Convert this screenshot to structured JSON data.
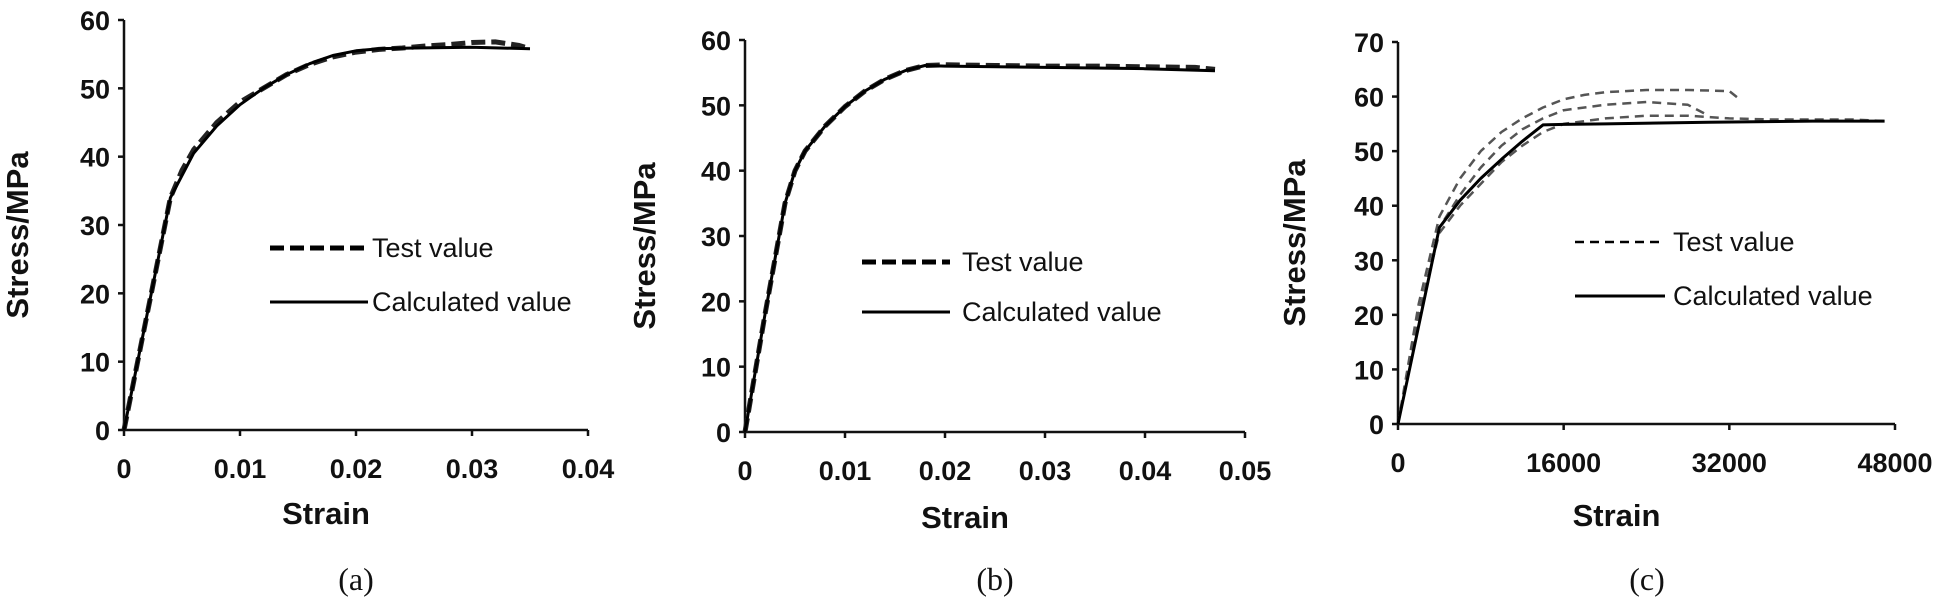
{
  "chart_data": [
    {
      "type": "line",
      "caption": "(a)",
      "xlabel": "Strain",
      "ylabel": "Stress/MPa",
      "xlim": [
        0,
        0.04
      ],
      "ylim": [
        0,
        60
      ],
      "xticks": [
        0,
        0.01,
        0.02,
        0.03,
        0.04
      ],
      "xtick_labels": [
        "0",
        "0.01",
        "0.02",
        "0.03",
        "0.04"
      ],
      "yticks": [
        0,
        10,
        20,
        30,
        40,
        50,
        60
      ],
      "ytick_labels": [
        "0",
        "10",
        "20",
        "30",
        "40",
        "50",
        "60"
      ],
      "legend_position": "center-right",
      "series": [
        {
          "name": "Test value",
          "style": "dashed-thick",
          "x": [
            0,
            0.002,
            0.004,
            0.005,
            0.006,
            0.008,
            0.01,
            0.012,
            0.014,
            0.016,
            0.018,
            0.02,
            0.022,
            0.024,
            0.026,
            0.028,
            0.03,
            0.032,
            0.034,
            0.035
          ],
          "y": [
            0,
            17,
            34,
            38,
            41,
            45,
            48,
            50,
            52,
            53.5,
            54.6,
            55.3,
            55.7,
            55.9,
            56.2,
            56.4,
            56.7,
            56.8,
            56.3,
            55.8
          ]
        },
        {
          "name": "Calculated value",
          "style": "solid",
          "x": [
            0,
            0.004,
            0.006,
            0.008,
            0.01,
            0.012,
            0.014,
            0.016,
            0.018,
            0.02,
            0.022,
            0.025,
            0.03,
            0.035
          ],
          "y": [
            0,
            34,
            40.5,
            44.5,
            47.6,
            50,
            52,
            53.6,
            54.8,
            55.5,
            55.8,
            55.9,
            56,
            55.8
          ]
        }
      ]
    },
    {
      "type": "line",
      "caption": "(b)",
      "xlabel": "Strain",
      "ylabel": "Stress/MPa",
      "xlim": [
        0,
        0.05
      ],
      "ylim": [
        0,
        60
      ],
      "xticks": [
        0,
        0.01,
        0.02,
        0.03,
        0.04,
        0.05
      ],
      "xtick_labels": [
        "0",
        "0.01",
        "0.02",
        "0.03",
        "0.04",
        "0.05"
      ],
      "yticks": [
        0,
        10,
        20,
        30,
        40,
        50,
        60
      ],
      "ytick_labels": [
        "0",
        "10",
        "20",
        "30",
        "40",
        "50",
        "60"
      ],
      "legend_position": "center-right",
      "series": [
        {
          "name": "Test value",
          "style": "dashed-thick",
          "x": [
            0,
            0.002,
            0.004,
            0.005,
            0.006,
            0.008,
            0.01,
            0.012,
            0.014,
            0.016,
            0.018,
            0.02,
            0.025,
            0.03,
            0.035,
            0.04,
            0.045,
            0.047
          ],
          "y": [
            0,
            18,
            35,
            40,
            43,
            46.8,
            49.8,
            52.2,
            54,
            55.3,
            56.1,
            56.2,
            56.1,
            56,
            56,
            55.9,
            55.8,
            55.5
          ]
        },
        {
          "name": "Calculated value",
          "style": "solid",
          "x": [
            0,
            0.002,
            0.004,
            0.005,
            0.006,
            0.008,
            0.01,
            0.012,
            0.014,
            0.016,
            0.018,
            0.02,
            0.03,
            0.04,
            0.047
          ],
          "y": [
            0,
            18,
            35,
            40,
            43,
            46.8,
            49.8,
            52.2,
            54,
            55.3,
            56.1,
            56,
            55.8,
            55.6,
            55.3
          ]
        }
      ]
    },
    {
      "type": "line",
      "caption": "(c)",
      "xlabel": "Strain",
      "ylabel": "Stress/MPa",
      "xlim": [
        0,
        48000
      ],
      "ylim": [
        0,
        70
      ],
      "xticks": [
        0,
        16000,
        32000,
        48000
      ],
      "xtick_labels": [
        "0",
        "16000",
        "32000",
        "48000"
      ],
      "yticks": [
        0,
        10,
        20,
        30,
        40,
        50,
        60,
        70
      ],
      "ytick_labels": [
        "0",
        "10",
        "20",
        "30",
        "40",
        "50",
        "60",
        "70"
      ],
      "legend_position": "center-right",
      "series": [
        {
          "name": "Test value",
          "style": "dashed-thin",
          "x": [
            0,
            2000,
            4000,
            6000,
            8000,
            10000,
            12000,
            14000,
            16000,
            18000,
            20000,
            22000,
            24000,
            28000,
            32000,
            33000
          ],
          "y": [
            0,
            22,
            38,
            45,
            50,
            53.5,
            56,
            58,
            59.5,
            60.3,
            60.8,
            61,
            61.2,
            61.2,
            61,
            59.5
          ]
        },
        {
          "name": "Test value",
          "style": "dashed-thin",
          "x": [
            0,
            2000,
            4000,
            6000,
            8000,
            10000,
            12000,
            14000,
            16000,
            20000,
            24000,
            28000,
            30000
          ],
          "y": [
            0,
            20,
            36,
            42,
            47,
            51,
            54,
            56,
            57.5,
            58.5,
            59,
            58.5,
            56.5
          ]
        },
        {
          "name": "Test value",
          "style": "dashed-thin",
          "x": [
            0,
            2000,
            4000,
            6000,
            8000,
            10000,
            12000,
            14000,
            16000,
            20000,
            24000,
            28000,
            32000,
            36000,
            40000,
            44000,
            47000
          ],
          "y": [
            0,
            20,
            35,
            40,
            44,
            48,
            51,
            53.5,
            55,
            56,
            56.5,
            56.5,
            56,
            55.8,
            55.8,
            55.8,
            55.5
          ]
        },
        {
          "name": "Calculated value",
          "style": "solid",
          "x": [
            0,
            4000,
            6000,
            8000,
            10000,
            12000,
            14000,
            16000,
            20000,
            30000,
            40000,
            47000
          ],
          "y": [
            0,
            36,
            41,
            45,
            48.5,
            51.8,
            54.8,
            54.9,
            55,
            55.3,
            55.5,
            55.5
          ]
        }
      ]
    }
  ]
}
